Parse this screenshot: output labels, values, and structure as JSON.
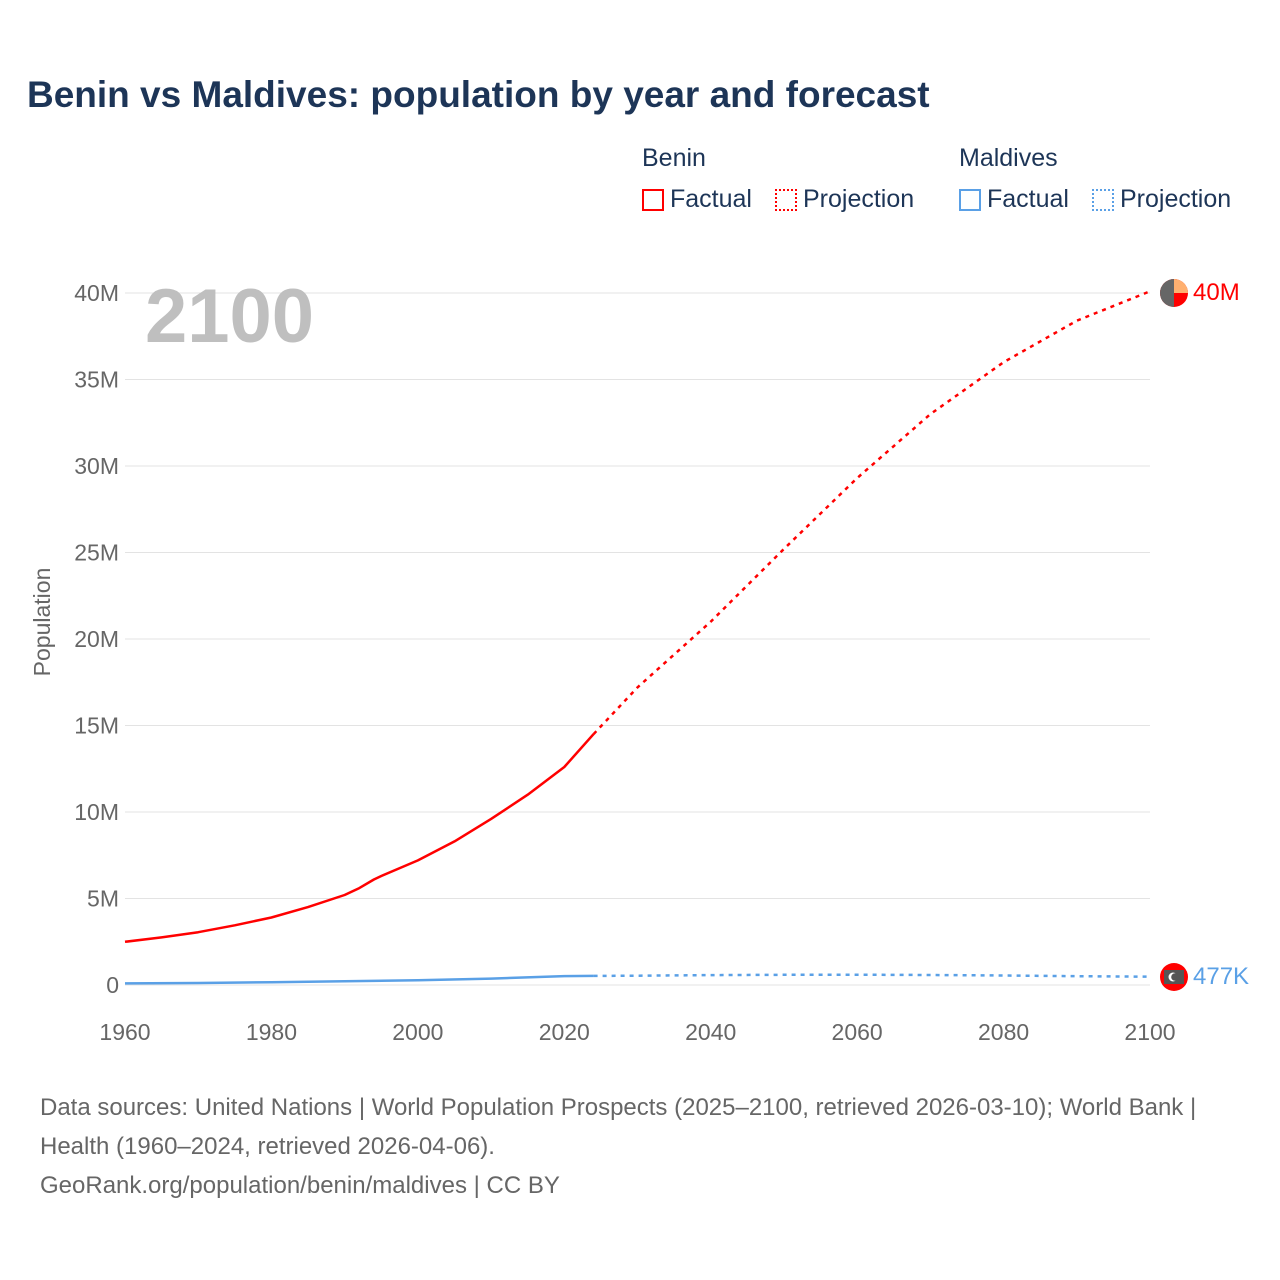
{
  "title": "Benin vs Maldives: population by year and forecast",
  "legend": {
    "groups": [
      {
        "name": "Benin",
        "color": "#ff0000",
        "items": [
          "Factual",
          "Projection"
        ]
      },
      {
        "name": "Maldives",
        "color": "#5aa0e6",
        "items": [
          "Factual",
          "Projection"
        ]
      }
    ]
  },
  "year_label": "2100",
  "end_labels": {
    "benin": "40M",
    "maldives": "477K"
  },
  "source_lines": [
    "Data sources: United Nations | World Population Prospects (2025–2100, retrieved 2026-03-10); World Bank | Health (1960–2024, retrieved 2026-04-06).",
    "GeoRank.org/population/benin/maldives | CC BY"
  ],
  "chart_data": {
    "type": "line",
    "title": "Benin vs Maldives: population by year and forecast",
    "xlabel": "",
    "ylabel": "Population",
    "xlim": [
      1960,
      2100
    ],
    "ylim": [
      0,
      40000000
    ],
    "xticks": [
      1960,
      1980,
      2000,
      2020,
      2040,
      2060,
      2080,
      2100
    ],
    "xtick_labels": [
      "1960",
      "1980",
      "2000",
      "2020",
      "2040",
      "2060",
      "2080",
      "2100"
    ],
    "yticks": [
      0,
      5000000,
      10000000,
      15000000,
      20000000,
      25000000,
      30000000,
      35000000,
      40000000
    ],
    "ytick_labels": [
      "0",
      "5M",
      "10M",
      "15M",
      "20M",
      "25M",
      "30M",
      "35M",
      "40M"
    ],
    "grid": true,
    "series": [
      {
        "name": "Benin Factual",
        "color": "#ff0000",
        "dashed": false,
        "x": [
          1960,
          1965,
          1970,
          1975,
          1980,
          1985,
          1990,
          1992,
          1994,
          1995,
          2000,
          2005,
          2010,
          2015,
          2020,
          2024
        ],
        "y": [
          2500000,
          2750000,
          3050000,
          3450000,
          3900000,
          4500000,
          5200000,
          5600000,
          6100000,
          6300000,
          7200000,
          8300000,
          9600000,
          11000000,
          12600000,
          14500000
        ]
      },
      {
        "name": "Benin Projection",
        "color": "#ff0000",
        "dashed": true,
        "x": [
          2024,
          2030,
          2040,
          2050,
          2060,
          2070,
          2080,
          2090,
          2100
        ],
        "y": [
          14500000,
          17200000,
          21000000,
          25200000,
          29300000,
          33000000,
          36000000,
          38400000,
          40100000
        ]
      },
      {
        "name": "Maldives Factual",
        "color": "#5aa0e6",
        "dashed": false,
        "x": [
          1960,
          1970,
          1980,
          1990,
          2000,
          2010,
          2020,
          2024
        ],
        "y": [
          90000,
          115000,
          160000,
          220000,
          280000,
          370000,
          515000,
          525000
        ]
      },
      {
        "name": "Maldives Projection",
        "color": "#5aa0e6",
        "dashed": true,
        "x": [
          2024,
          2030,
          2040,
          2050,
          2060,
          2070,
          2080,
          2090,
          2100
        ],
        "y": [
          525000,
          540000,
          570000,
          590000,
          595000,
          580000,
          550000,
          510000,
          477000
        ]
      }
    ]
  }
}
